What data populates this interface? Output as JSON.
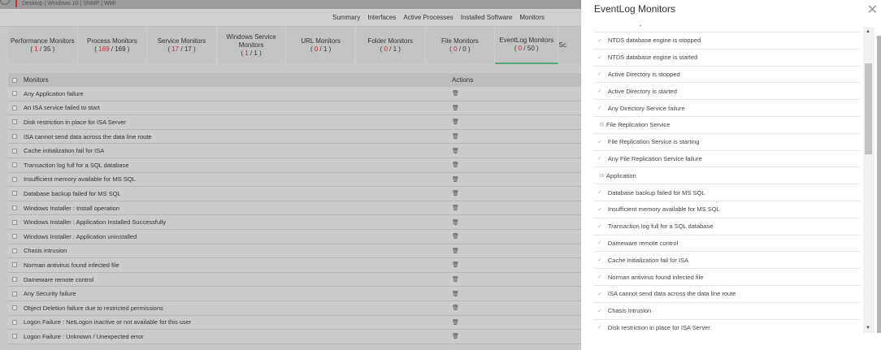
{
  "header": {
    "breadcrumb": "Desktop | Windows 10 | SNMP | WMI"
  },
  "nav": {
    "items": [
      "Summary",
      "Interfaces",
      "Active Processes",
      "Installed Software",
      "Monitors"
    ],
    "active": "Monitors"
  },
  "tabs": [
    {
      "label": "Performance Monitors",
      "a": "1",
      "b": "35"
    },
    {
      "label": "Process Monitors",
      "a": "169",
      "b": "169"
    },
    {
      "label": "Service Monitors",
      "a": "17",
      "b": "17"
    },
    {
      "label": "Windows Service Monitors",
      "a": "1",
      "b": "1"
    },
    {
      "label": "URL Monitors",
      "a": "0",
      "b": "1"
    },
    {
      "label": "Folder Monitors",
      "a": "0",
      "b": "1"
    },
    {
      "label": "File Monitors",
      "a": "0",
      "b": "0"
    },
    {
      "label": "EventLog Monitors",
      "a": "0",
      "b": "50",
      "active": true
    },
    {
      "label": "Sc",
      "a": "",
      "b": ""
    }
  ],
  "table": {
    "col_monitors": "Monitors",
    "col_actions": "Actions",
    "rows": [
      "Any Application failure",
      "An ISA service failed to start",
      "Disk restriction in place for ISA Server",
      "ISA cannot send data across the data line route",
      "Cache initialization fail for ISA",
      "Transaction log full for a SQL database",
      "Insufficient memory available for MS SQL",
      "Database backup failed for MS SQL",
      "Windows Installer : Install operation",
      "Windows Installer : Application Installed Successfully",
      "Windows Installer : Application uninstalled",
      "Chasis intrusion",
      "Norman antivirus found infected file",
      "Dameware remote control",
      "Any Security failure",
      "Object Deletion failure due to restricted permissions",
      "Logon Failure : NetLogon inactive or not available for this user",
      "Logon Failure : Unknown / Unexpected error"
    ]
  },
  "panel": {
    "title": "EventLog Monitors",
    "items": [
      {
        "t": "NTDS database engine is stopped"
      },
      {
        "t": "NTDS database engine is started"
      },
      {
        "t": "Active Directory is stopped"
      },
      {
        "t": "Active Directory is started"
      },
      {
        "t": "Any Directory Service failure"
      },
      {
        "t": "File Replication Service",
        "group": true
      },
      {
        "t": "File Replication Service is starting"
      },
      {
        "t": "Any File Replication Service failure"
      },
      {
        "t": "Application",
        "group": true
      },
      {
        "t": "Database backup failed for MS SQL"
      },
      {
        "t": "Insufficient memory available for MS SQL"
      },
      {
        "t": "Transaction log full for a SQL database"
      },
      {
        "t": "Dameware remote control"
      },
      {
        "t": "Cache initialization fail for ISA"
      },
      {
        "t": "Norman antivirus found infected file"
      },
      {
        "t": "ISA cannot send data across the data line route"
      },
      {
        "t": "Chasis intrusion"
      },
      {
        "t": "Disk restriction in place for ISA Server"
      }
    ]
  },
  "colors": {
    "accent": "#5aa77a",
    "count_red": "#d22233"
  }
}
